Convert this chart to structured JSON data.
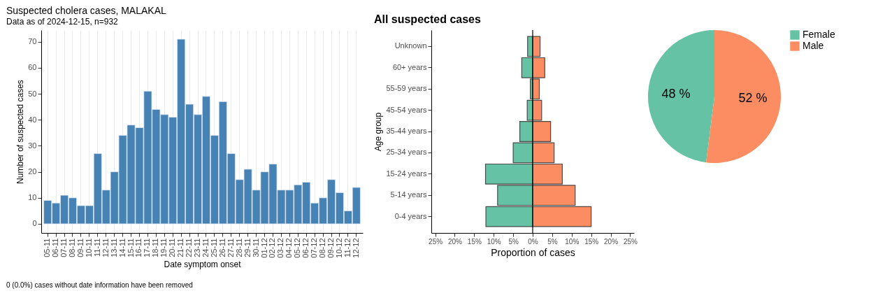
{
  "chart_data": [
    {
      "type": "bar",
      "title": "Suspected cholera cases, MALAKAL",
      "subtitle": "Data as of 2024-12-15, n=932",
      "xlabel": "Date symptom onset",
      "ylabel": "Number of suspected cases",
      "categories": [
        "05-11",
        "06-11",
        "07-11",
        "08-11",
        "09-11",
        "10-11",
        "11-11",
        "12-11",
        "13-11",
        "14-11",
        "15-11",
        "16-11",
        "17-11",
        "18-11",
        "19-11",
        "20-11",
        "21-11",
        "22-11",
        "23-11",
        "24-11",
        "25-11",
        "26-11",
        "27-11",
        "28-11",
        "29-11",
        "30-11",
        "01-12",
        "02-12",
        "03-12",
        "04-12",
        "05-12",
        "06-12",
        "07-12",
        "08-12",
        "09-12",
        "10-12",
        "11-12",
        "12-12"
      ],
      "series": [
        {
          "color": "#4682b4",
          "values": [
            9,
            8,
            11,
            10,
            7,
            7,
            27,
            13,
            20,
            34,
            38,
            37,
            51,
            44,
            42,
            41,
            71,
            46,
            42,
            49,
            34,
            47,
            27,
            17,
            21,
            13,
            20,
            23,
            13,
            13,
            15,
            16,
            8,
            10,
            17,
            12,
            5,
            14
          ]
        }
      ],
      "ylim": [
        -3.5,
        74.5
      ],
      "yticks": [
        0,
        10,
        20,
        30,
        40,
        50,
        60,
        70
      ],
      "grid": "x",
      "annotations": [
        "0 (0.0%) cases without date information have been removed"
      ]
    },
    {
      "type": "bar",
      "orientation": "horizontal",
      "stacked": true,
      "title": "All suspected cases",
      "xlabel": "Proportion of cases",
      "ylabel": "Age group",
      "categories": [
        "Unknown",
        "60+ years",
        "55-59 years",
        "45-54 years",
        "35-44 years",
        "25-34 years",
        "15-24 years",
        "5-14 years",
        "0-4 years"
      ],
      "series": [
        {
          "color": "#66c2a5",
          "values": [
            -1.3,
            -2.8,
            -0.6,
            -1.4,
            -3.3,
            -5.0,
            -12.1,
            -9.0,
            -12.0
          ]
        },
        {
          "color": "#fc8d62",
          "values": [
            1.9,
            3.1,
            1.7,
            2.3,
            4.6,
            5.5,
            7.6,
            10.9,
            15.0
          ]
        }
      ],
      "xlim": [
        -26,
        26
      ],
      "xticks": [
        {
          "value": -25,
          "label": "25%"
        },
        {
          "value": -20,
          "label": "20%"
        },
        {
          "value": -15,
          "label": "15%"
        },
        {
          "value": -10,
          "label": "10%"
        },
        {
          "value": -5,
          "label": "5%"
        },
        {
          "value": 0,
          "label": "0%"
        },
        {
          "value": 5,
          "label": "5%"
        },
        {
          "value": 10,
          "label": "10%"
        },
        {
          "value": 15,
          "label": "15%"
        },
        {
          "value": 20,
          "label": "20%"
        },
        {
          "value": 25,
          "label": "25%"
        }
      ],
      "ref_lines": [
        {
          "axis": "x",
          "value": 0
        }
      ]
    },
    {
      "type": "pie",
      "categories": [
        "Female",
        "Male"
      ],
      "values": [
        48,
        52
      ],
      "colors": [
        "#66c2a5",
        "#fc8d62"
      ],
      "value_labels": [
        "48 %",
        "52 %"
      ],
      "legend": "right"
    }
  ]
}
